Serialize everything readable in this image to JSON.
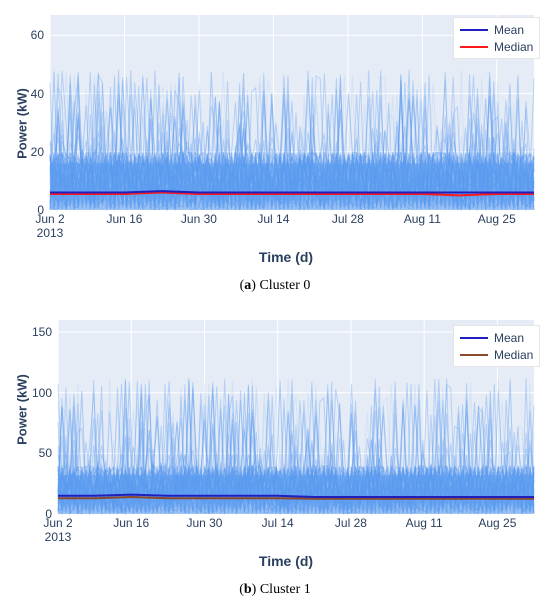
{
  "chart_data": [
    {
      "type": "line",
      "caption_label": "a",
      "caption_text": " Cluster 0",
      "xlabel": "Time (d)",
      "ylabel": "Power (kW)",
      "ylim": [
        0,
        67
      ],
      "yticks": [
        0,
        20,
        40,
        60
      ],
      "xticks": [
        "Jun 2",
        "Jun 16",
        "Jun 30",
        "Jul 14",
        "Jul 28",
        "Aug 11",
        "Aug 25"
      ],
      "x_start_label": "2013",
      "x_range": [
        "2013-06-02",
        "2013-09-01"
      ],
      "grid": true,
      "legend_position": "top-right",
      "band_color": "#5b9cf0",
      "band_typical_max": 20,
      "series": [
        {
          "name": "Mean",
          "color": "#1f1fbf",
          "approx_values": [
            6,
            6,
            6,
            6.5,
            6,
            6,
            6,
            6,
            6,
            6,
            6,
            6,
            6,
            6
          ]
        },
        {
          "name": "Median",
          "color": "#ff1a1a",
          "approx_values": [
            5.5,
            5.5,
            5.5,
            6,
            5.5,
            5.5,
            5.5,
            5.5,
            5.5,
            5.5,
            5.5,
            5,
            5.5,
            5.5
          ]
        }
      ]
    },
    {
      "type": "line",
      "caption_label": "b",
      "caption_text": " Cluster 1",
      "xlabel": "Time (d)",
      "ylabel": "Power (kW)",
      "ylim": [
        0,
        160
      ],
      "yticks": [
        0,
        50,
        100,
        150
      ],
      "xticks": [
        "Jun 2",
        "Jun 16",
        "Jun 30",
        "Jul 14",
        "Jul 28",
        "Aug 11",
        "Aug 25"
      ],
      "x_start_label": "2013",
      "x_range": [
        "2013-06-02",
        "2013-09-01"
      ],
      "grid": true,
      "legend_position": "top-right",
      "band_color": "#5b9cf0",
      "band_typical_max": 40,
      "series": [
        {
          "name": "Mean",
          "color": "#1f1fbf",
          "approx_values": [
            15,
            15,
            16,
            15,
            15,
            15,
            15,
            14,
            14,
            14,
            14,
            14,
            14,
            14
          ]
        },
        {
          "name": "Median",
          "color": "#8b4a2b",
          "approx_values": [
            13,
            13,
            14,
            13,
            13,
            13,
            13,
            12.5,
            12.5,
            12.5,
            12.5,
            12.5,
            12.5,
            12.5
          ]
        }
      ]
    }
  ]
}
